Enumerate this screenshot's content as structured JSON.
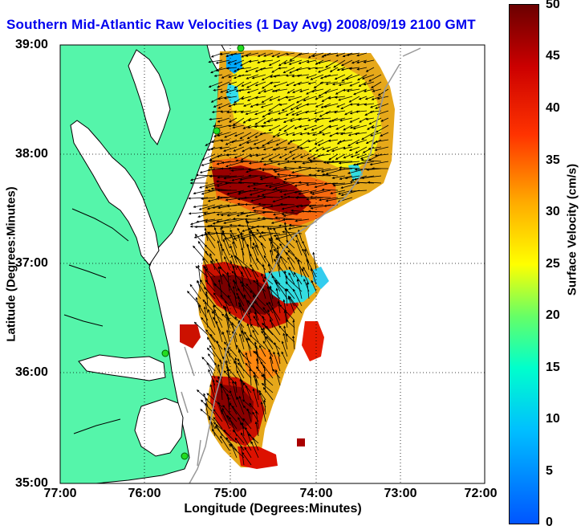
{
  "title": "Southern Mid-Atlantic Raw Velocities (1 Day Avg) 2008/09/19 2100 GMT",
  "x_axis": {
    "label": "Longitude (Degrees:Minutes)",
    "ticks": [
      "77:00",
      "76:00",
      "75:00",
      "74:00",
      "73:00",
      "72:00"
    ]
  },
  "y_axis": {
    "label": "Latitude (Degrees:Minutes)",
    "ticks": [
      "39:00",
      "38:00",
      "37:00",
      "36:00",
      "35:00"
    ]
  },
  "colorbar": {
    "label": "Surface Velocity (cm/s)",
    "ticks": [
      "50",
      "45",
      "40",
      "35",
      "30",
      "25",
      "20",
      "15",
      "10",
      "5",
      "0"
    ],
    "range": [
      0,
      50
    ],
    "colormap": "jet"
  },
  "colors": {
    "title": "#0000ee",
    "land": "#55f5aa",
    "water_bays": "#ffffff",
    "coastline": "#000000",
    "bathymetry": "#999999",
    "station_marker": "#22dd22"
  }
}
